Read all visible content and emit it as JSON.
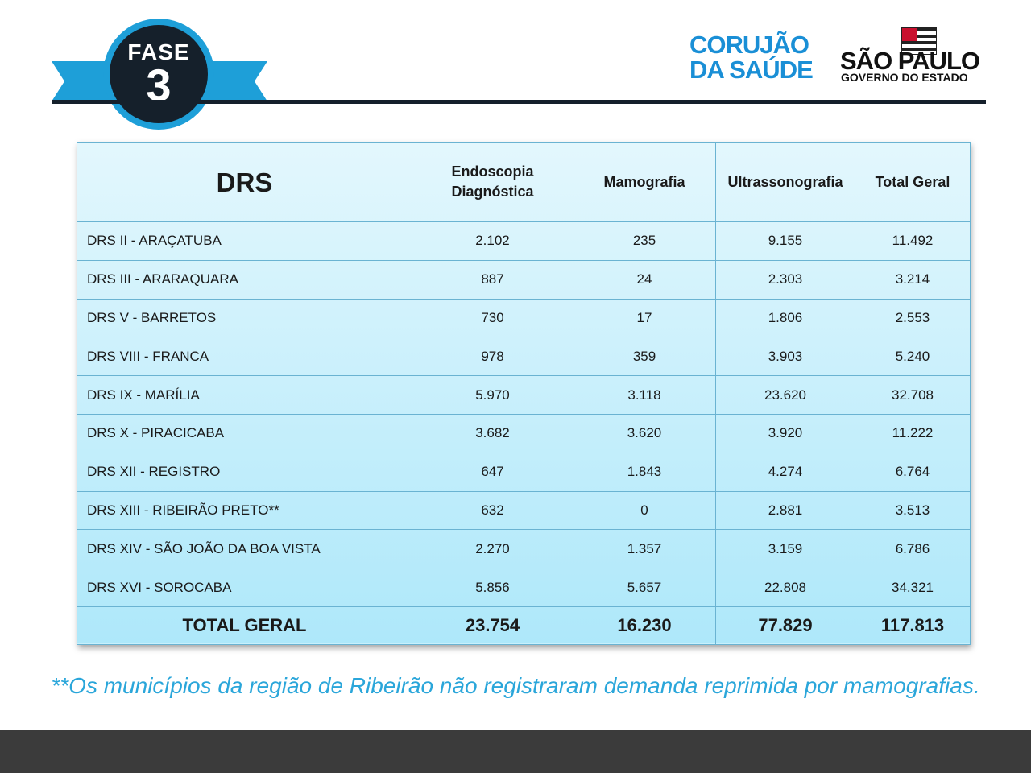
{
  "header": {
    "phase_label": "FASE",
    "phase_number": "3",
    "brand_line1": "CORUJÃO",
    "brand_line2": "DA SAÚDE",
    "gov_title": "SÃO PAULO",
    "gov_subtitle": "GOVERNO DO ESTADO",
    "accent_color": "#1e9fd8"
  },
  "table": {
    "headers": [
      "DRS",
      "Endoscopia Diagnóstica",
      "Mamografia",
      "Ultrassonografia",
      "Total Geral"
    ],
    "rows": [
      [
        "DRS II - ARAÇATUBA",
        "2.102",
        "235",
        "9.155",
        "11.492"
      ],
      [
        "DRS III - ARARAQUARA",
        "887",
        "24",
        "2.303",
        "3.214"
      ],
      [
        "DRS V - BARRETOS",
        "730",
        "17",
        "1.806",
        "2.553"
      ],
      [
        "DRS VIII - FRANCA",
        "978",
        "359",
        "3.903",
        "5.240"
      ],
      [
        "DRS IX - MARÍLIA",
        "5.970",
        "3.118",
        "23.620",
        "32.708"
      ],
      [
        "DRS X - PIRACICABA",
        "3.682",
        "3.620",
        "3.920",
        "11.222"
      ],
      [
        "DRS XII - REGISTRO",
        "647",
        "1.843",
        "4.274",
        "6.764"
      ],
      [
        "DRS XIII - RIBEIRÃO PRETO**",
        "632",
        "0",
        "2.881",
        "3.513"
      ],
      [
        "DRS XIV - SÃO JOÃO DA BOA VISTA",
        "2.270",
        "1.357",
        "3.159",
        "6.786"
      ],
      [
        "DRS XVI - SOROCABA",
        "5.856",
        "5.657",
        "22.808",
        "34.321"
      ]
    ],
    "total": [
      "TOTAL GERAL",
      "23.754",
      "16.230",
      "77.829",
      "117.813"
    ]
  },
  "footnote": "**Os municípios da região de Ribeirão não registraram demanda reprimida por mamografias."
}
